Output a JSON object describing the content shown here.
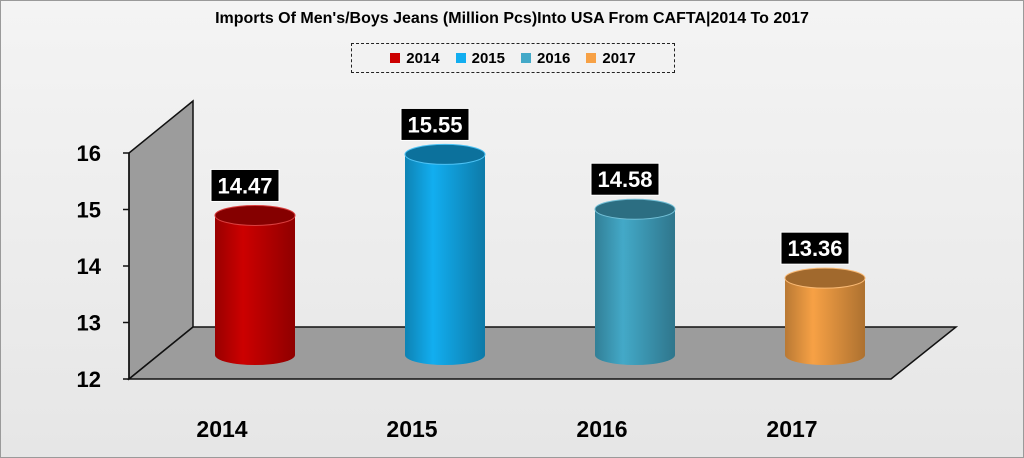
{
  "chart_data": {
    "type": "bar",
    "title": "Imports Of Men's/Boys Jeans (Million Pcs)Into USA From CAFTA|2014 To 2017",
    "categories": [
      "2014",
      "2015",
      "2016",
      "2017"
    ],
    "values": [
      14.47,
      15.55,
      14.58,
      13.36
    ],
    "value_labels": [
      "14.47",
      "15.55",
      "14.58",
      "13.36"
    ],
    "colors": [
      "#cc0000",
      "#12aef0",
      "#43a9c8",
      "#f7a145"
    ],
    "legend": [
      "2014",
      "2015",
      "2016",
      "2017"
    ],
    "legend_position": "top",
    "ylim": [
      12,
      16
    ],
    "yticks": [
      "12",
      "13",
      "14",
      "15",
      "16"
    ],
    "xlabel": "",
    "ylabel": "",
    "grid": false
  }
}
